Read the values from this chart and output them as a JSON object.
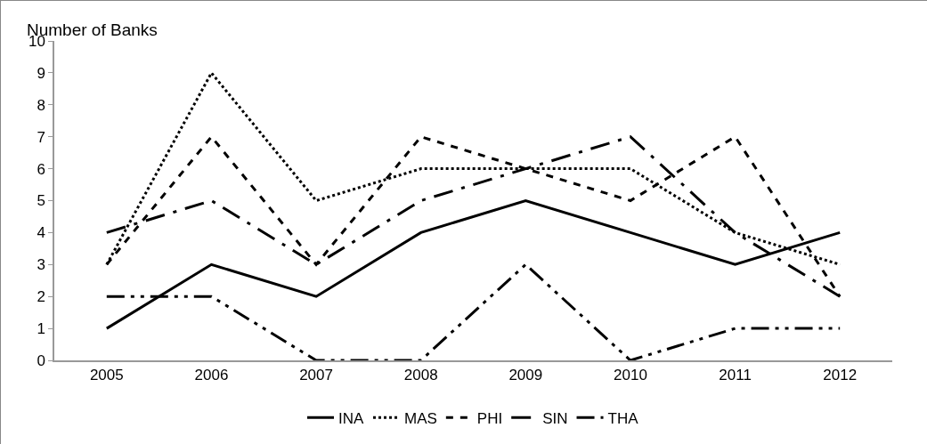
{
  "chart_data": {
    "type": "line",
    "ylabel": "Number of Banks",
    "categories": [
      "2005",
      "2006",
      "2007",
      "2008",
      "2009",
      "2010",
      "2011",
      "2012"
    ],
    "series": [
      {
        "name": "INA",
        "color": "#000000",
        "line_style": "solid",
        "values": [
          1,
          3,
          2,
          4,
          5,
          4,
          3,
          4
        ]
      },
      {
        "name": "MAS",
        "color": "#000000",
        "line_style": "dotted",
        "values": [
          3,
          9,
          5,
          6,
          6,
          6,
          4,
          3
        ]
      },
      {
        "name": "PHI",
        "color": "#000000",
        "line_style": "dashed",
        "values": [
          3,
          7,
          3,
          7,
          6,
          5,
          7,
          2
        ]
      },
      {
        "name": "SIN",
        "color": "#000000",
        "line_style": "longdashdot",
        "values": [
          4,
          5,
          3,
          5,
          6,
          7,
          4,
          2
        ]
      },
      {
        "name": "THA",
        "color": "#000000",
        "line_style": "longdashdotdot",
        "values": [
          2,
          2,
          0,
          0,
          3,
          0,
          1,
          1
        ]
      }
    ],
    "ylim": [
      0,
      10
    ],
    "yticks": [
      0,
      1,
      2,
      3,
      4,
      5,
      6,
      7,
      8,
      9,
      10
    ],
    "grid": false,
    "legend": "bottom",
    "marker": "none"
  }
}
